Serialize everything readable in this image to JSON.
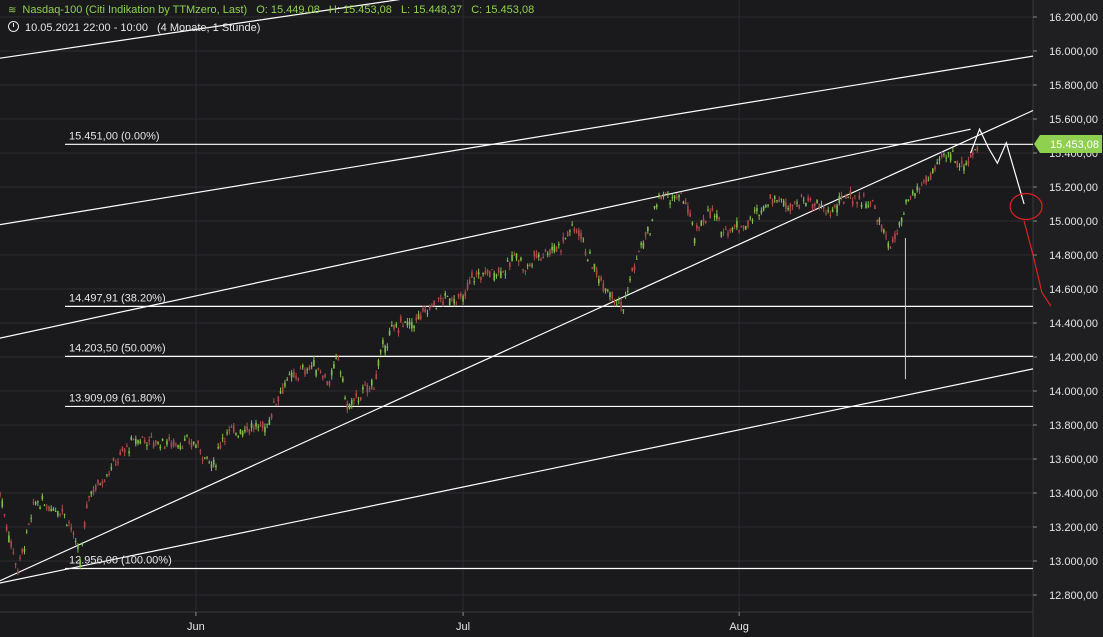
{
  "header": {
    "title": "Nasdaq-100 (Citi Indikation by TTMzero, Last)",
    "open": "O: 15.449,08",
    "high": "H: 15.453,08",
    "low": "L: 15.448,37",
    "close": "C: 15.453,08",
    "date_range": "10.05.2021 22:00 - 10:00",
    "period": "(4 Monate, 1 Stunde)",
    "logo_icon": "chart-logo-icon",
    "clock_icon": "clock-icon"
  },
  "colors": {
    "background": "#1a1a1d",
    "axis_panel": "#1f1f22",
    "grid": "#2c2c31",
    "text": "#e6e6e6",
    "candle_up": "#7fbf4a",
    "candle_down": "#b04a4a",
    "lines": "#ffffff",
    "price_tag": "#8fd14f",
    "projection_red": "#e02020"
  },
  "chart_data": {
    "type": "line",
    "title": "Nasdaq-100 (Citi Indikation by TTMzero, Last)",
    "xlabel": "",
    "ylabel": "",
    "ylim": [
      12700,
      16300
    ],
    "y_ticks": [
      12800,
      13000,
      13200,
      13400,
      13600,
      13800,
      14000,
      14200,
      14400,
      14600,
      14800,
      15000,
      15200,
      15400,
      15600,
      15800,
      16000,
      16200
    ],
    "y_tick_labels": [
      "12.800,00",
      "13.000,00",
      "13.200,00",
      "13.400,00",
      "13.600,00",
      "13.800,00",
      "14.000,00",
      "14.200,00",
      "14.400,00",
      "14.600,00",
      "14.800,00",
      "15.000,00",
      "15.200,00",
      "15.400,00",
      "15.600,00",
      "15.800,00",
      "16.000,00",
      "16.200,00"
    ],
    "xlim": [
      "2021-05-10",
      "2021-09-03"
    ],
    "x_ticks": [
      {
        "date": "2021-06-01",
        "label": "Jun"
      },
      {
        "date": "2021-07-01",
        "label": "Jul"
      },
      {
        "date": "2021-08-01",
        "label": "Aug"
      }
    ],
    "grid": true,
    "last_price": {
      "value": 15453.08,
      "label": "15.453,08"
    },
    "price_series": [
      {
        "date": "2021-05-10",
        "value": 13400
      },
      {
        "date": "2021-05-11",
        "value": 13150
      },
      {
        "date": "2021-05-12",
        "value": 12950
      },
      {
        "date": "2021-05-13",
        "value": 13150
      },
      {
        "date": "2021-05-14",
        "value": 13350
      },
      {
        "date": "2021-05-17",
        "value": 13300
      },
      {
        "date": "2021-05-18",
        "value": 13200
      },
      {
        "date": "2021-05-19",
        "value": 12990
      },
      {
        "date": "2021-05-20",
        "value": 13400
      },
      {
        "date": "2021-05-21",
        "value": 13450
      },
      {
        "date": "2021-05-24",
        "value": 13650
      },
      {
        "date": "2021-05-25",
        "value": 13700
      },
      {
        "date": "2021-05-26",
        "value": 13720
      },
      {
        "date": "2021-05-27",
        "value": 13700
      },
      {
        "date": "2021-05-28",
        "value": 13700
      },
      {
        "date": "2021-06-01",
        "value": 13690
      },
      {
        "date": "2021-06-03",
        "value": 13550
      },
      {
        "date": "2021-06-04",
        "value": 13740
      },
      {
        "date": "2021-06-07",
        "value": 13790
      },
      {
        "date": "2021-06-08",
        "value": 13780
      },
      {
        "date": "2021-06-09",
        "value": 13800
      },
      {
        "date": "2021-06-10",
        "value": 13950
      },
      {
        "date": "2021-06-11",
        "value": 14050
      },
      {
        "date": "2021-06-14",
        "value": 14150
      },
      {
        "date": "2021-06-15",
        "value": 14120
      },
      {
        "date": "2021-06-16",
        "value": 14050
      },
      {
        "date": "2021-06-17",
        "value": 14200
      },
      {
        "date": "2021-06-18",
        "value": 13900
      },
      {
        "date": "2021-06-21",
        "value": 14050
      },
      {
        "date": "2021-06-22",
        "value": 14250
      },
      {
        "date": "2021-06-23",
        "value": 14350
      },
      {
        "date": "2021-06-24",
        "value": 14400
      },
      {
        "date": "2021-06-25",
        "value": 14380
      },
      {
        "date": "2021-06-28",
        "value": 14520
      },
      {
        "date": "2021-06-29",
        "value": 14540
      },
      {
        "date": "2021-06-30",
        "value": 14550
      },
      {
        "date": "2021-07-01",
        "value": 14530
      },
      {
        "date": "2021-07-02",
        "value": 14670
      },
      {
        "date": "2021-07-06",
        "value": 14720
      },
      {
        "date": "2021-07-07",
        "value": 14820
      },
      {
        "date": "2021-07-08",
        "value": 14700
      },
      {
        "date": "2021-07-09",
        "value": 14790
      },
      {
        "date": "2021-07-12",
        "value": 14860
      },
      {
        "date": "2021-07-13",
        "value": 14950
      },
      {
        "date": "2021-07-14",
        "value": 14950
      },
      {
        "date": "2021-07-15",
        "value": 14800
      },
      {
        "date": "2021-07-16",
        "value": 14690
      },
      {
        "date": "2021-07-19",
        "value": 14490
      },
      {
        "date": "2021-07-20",
        "value": 14700
      },
      {
        "date": "2021-07-21",
        "value": 14850
      },
      {
        "date": "2021-07-22",
        "value": 14950
      },
      {
        "date": "2021-07-23",
        "value": 15150
      },
      {
        "date": "2021-07-26",
        "value": 15120
      },
      {
        "date": "2021-07-27",
        "value": 14900
      },
      {
        "date": "2021-07-28",
        "value": 15020
      },
      {
        "date": "2021-07-29",
        "value": 15050
      },
      {
        "date": "2021-07-30",
        "value": 14950
      },
      {
        "date": "2021-08-02",
        "value": 14980
      },
      {
        "date": "2021-08-03",
        "value": 15050
      },
      {
        "date": "2021-08-04",
        "value": 15100
      },
      {
        "date": "2021-08-05",
        "value": 15150
      },
      {
        "date": "2021-08-06",
        "value": 15100
      },
      {
        "date": "2021-08-09",
        "value": 15120
      },
      {
        "date": "2021-08-10",
        "value": 15080
      },
      {
        "date": "2021-08-11",
        "value": 15050
      },
      {
        "date": "2021-08-12",
        "value": 15080
      },
      {
        "date": "2021-08-13",
        "value": 15150
      },
      {
        "date": "2021-08-16",
        "value": 15100
      },
      {
        "date": "2021-08-17",
        "value": 14950
      },
      {
        "date": "2021-08-18",
        "value": 14850
      },
      {
        "date": "2021-08-19",
        "value": 14950
      },
      {
        "date": "2021-08-20",
        "value": 15120
      },
      {
        "date": "2021-08-23",
        "value": 15300
      },
      {
        "date": "2021-08-24",
        "value": 15380
      },
      {
        "date": "2021-08-25",
        "value": 15390
      },
      {
        "date": "2021-08-26",
        "value": 15320
      },
      {
        "date": "2021-08-27",
        "value": 15380
      },
      {
        "date": "2021-08-28",
        "value": 15450
      }
    ],
    "spike": {
      "date": "2021-08-19",
      "low": 14070
    },
    "fibonacci_levels": [
      {
        "value": 15451.0,
        "label": "15.451,00 (0.00%)"
      },
      {
        "value": 14497.91,
        "label": "14.497,91 (38.20%)"
      },
      {
        "value": 14203.5,
        "label": "14.203,50 (50.00%)"
      },
      {
        "value": 13909.09,
        "label": "13.909,09 (61.80%)"
      },
      {
        "value": 12956.0,
        "label": "12.956,00 (100.00%)"
      }
    ],
    "trendlines": [
      {
        "from": {
          "date": "2021-05-09",
          "value": 15950
        },
        "to": {
          "date": "2021-06-30",
          "value": 16350
        }
      },
      {
        "from": {
          "date": "2021-05-09",
          "value": 14970
        },
        "to": {
          "date": "2021-09-03",
          "value": 15970
        }
      },
      {
        "from": {
          "date": "2021-05-09",
          "value": 14300
        },
        "to": {
          "date": "2021-08-27",
          "value": 15540
        }
      },
      {
        "from": {
          "date": "2021-05-09",
          "value": 12860
        },
        "to": {
          "date": "2021-09-03",
          "value": 15650
        }
      },
      {
        "from": {
          "date": "2021-05-09",
          "value": 12860
        },
        "to": {
          "date": "2021-09-03",
          "value": 14130
        }
      }
    ],
    "projection_white": [
      {
        "date": "2021-08-27",
        "value": 15400
      },
      {
        "date": "2021-08-28",
        "value": 15540
      },
      {
        "date": "2021-08-29",
        "value": 15430
      },
      {
        "date": "2021-08-30",
        "value": 15340
      },
      {
        "date": "2021-08-31",
        "value": 15460
      },
      {
        "date": "2021-09-02",
        "value": 15100
      }
    ],
    "projection_red": [
      {
        "date": "2021-09-02",
        "value": 15000
      },
      {
        "date": "2021-09-03",
        "value": 14800
      },
      {
        "date": "2021-09-04",
        "value": 14580
      },
      {
        "date": "2021-09-05",
        "value": 14500
      }
    ],
    "highlight_circle": {
      "date": "2021-09-02",
      "value": 15050
    }
  }
}
